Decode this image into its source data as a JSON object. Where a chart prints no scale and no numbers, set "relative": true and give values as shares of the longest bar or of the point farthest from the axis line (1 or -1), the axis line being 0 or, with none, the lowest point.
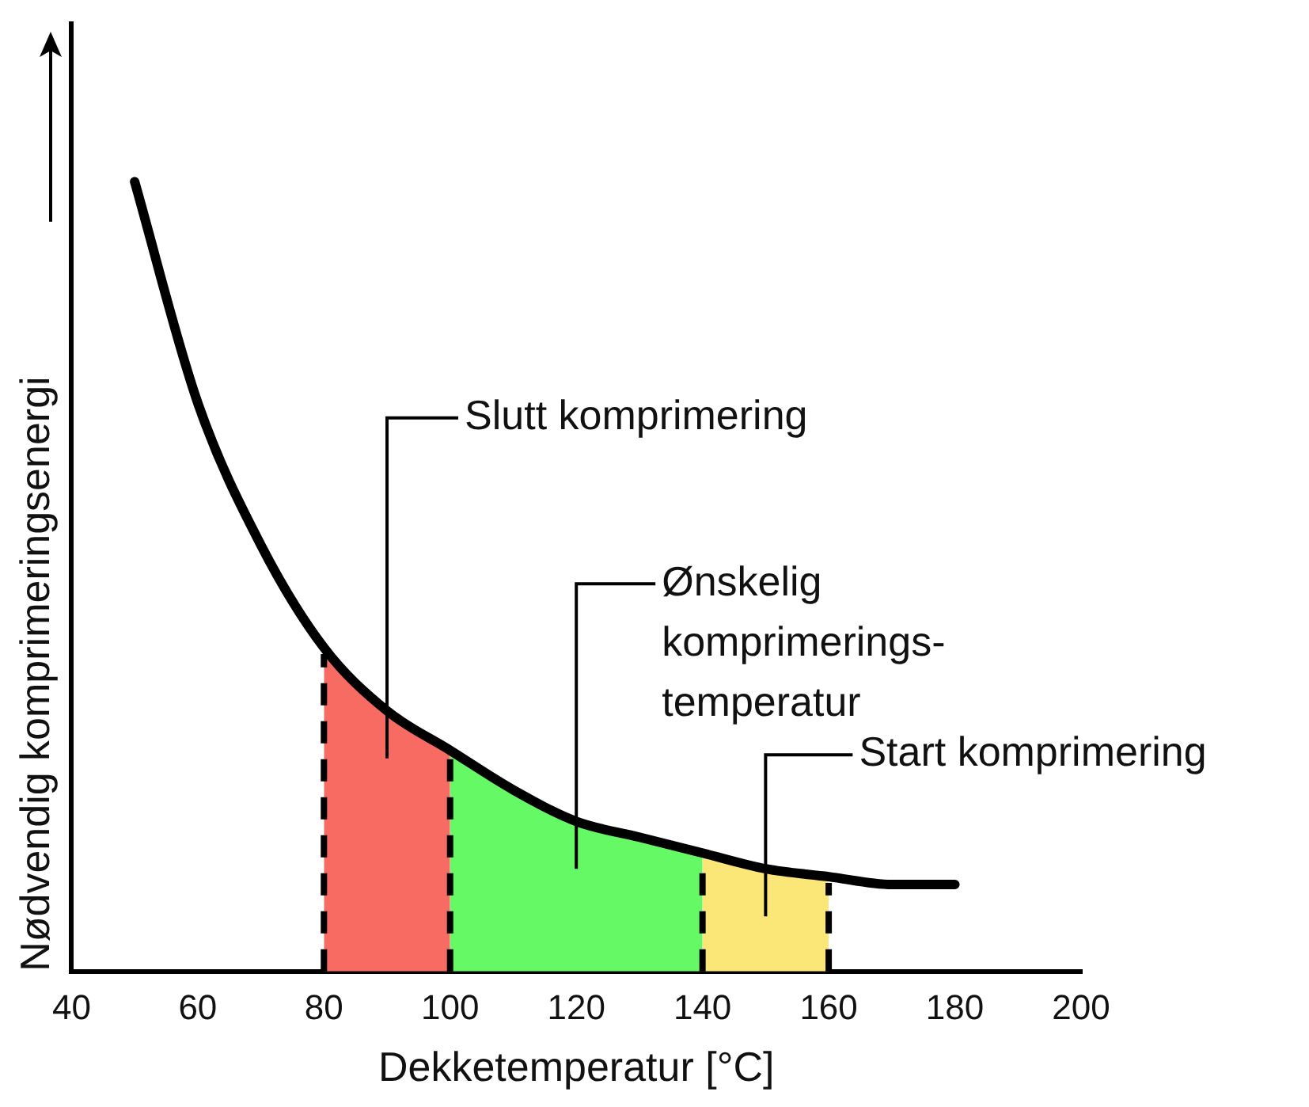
{
  "chart_data": {
    "type": "line",
    "relative": true,
    "xlabel": "Dekketemperatur [°C]",
    "ylabel": "Nødvendig komprimeringsenergi",
    "series": [
      {
        "color": "#000000",
        "x": [
          50,
          60,
          70,
          80,
          90,
          100,
          110,
          120,
          130,
          140,
          150,
          160,
          170,
          180
        ],
        "values": [
          1,
          0.72,
          0.54,
          0.41,
          0.33,
          0.28,
          0.23,
          0.19,
          0.17,
          0.15,
          0.13,
          0.12,
          0.11,
          0.11
        ]
      },
      {
        "type": "area",
        "name": "Slutt komprimering",
        "color": "#f76b63",
        "x": [
          80,
          90,
          100
        ],
        "values": [
          0.41,
          0.33,
          0.28
        ]
      },
      {
        "type": "area",
        "name": "Ønskelig\nkomprimerings-\ntemperatur",
        "color": "#66f966",
        "x": [
          100,
          110,
          120,
          130,
          140
        ],
        "values": [
          0.28,
          0.23,
          0.19,
          0.17,
          0.15
        ]
      },
      {
        "type": "area",
        "name": "Start komprimering",
        "color": "#fbe777",
        "x": [
          140,
          150,
          160
        ],
        "values": [
          0.15,
          0.13,
          0.12
        ]
      }
    ],
    "xlim": [
      40,
      200
    ],
    "xticks": [
      40,
      60,
      80,
      100,
      120,
      140,
      160,
      180,
      200
    ],
    "marker": "none",
    "grid": false,
    "legend": false,
    "ref_lines": [
      {
        "axis": "x",
        "value": 80,
        "line_style": "dashed",
        "color": "#000000"
      },
      {
        "axis": "x",
        "value": 100,
        "line_style": "dashed",
        "color": "#000000"
      },
      {
        "axis": "x",
        "value": 140,
        "line_style": "dashed",
        "color": "#000000"
      },
      {
        "axis": "x",
        "value": 160,
        "line_style": "dashed",
        "color": "#000000"
      }
    ]
  }
}
